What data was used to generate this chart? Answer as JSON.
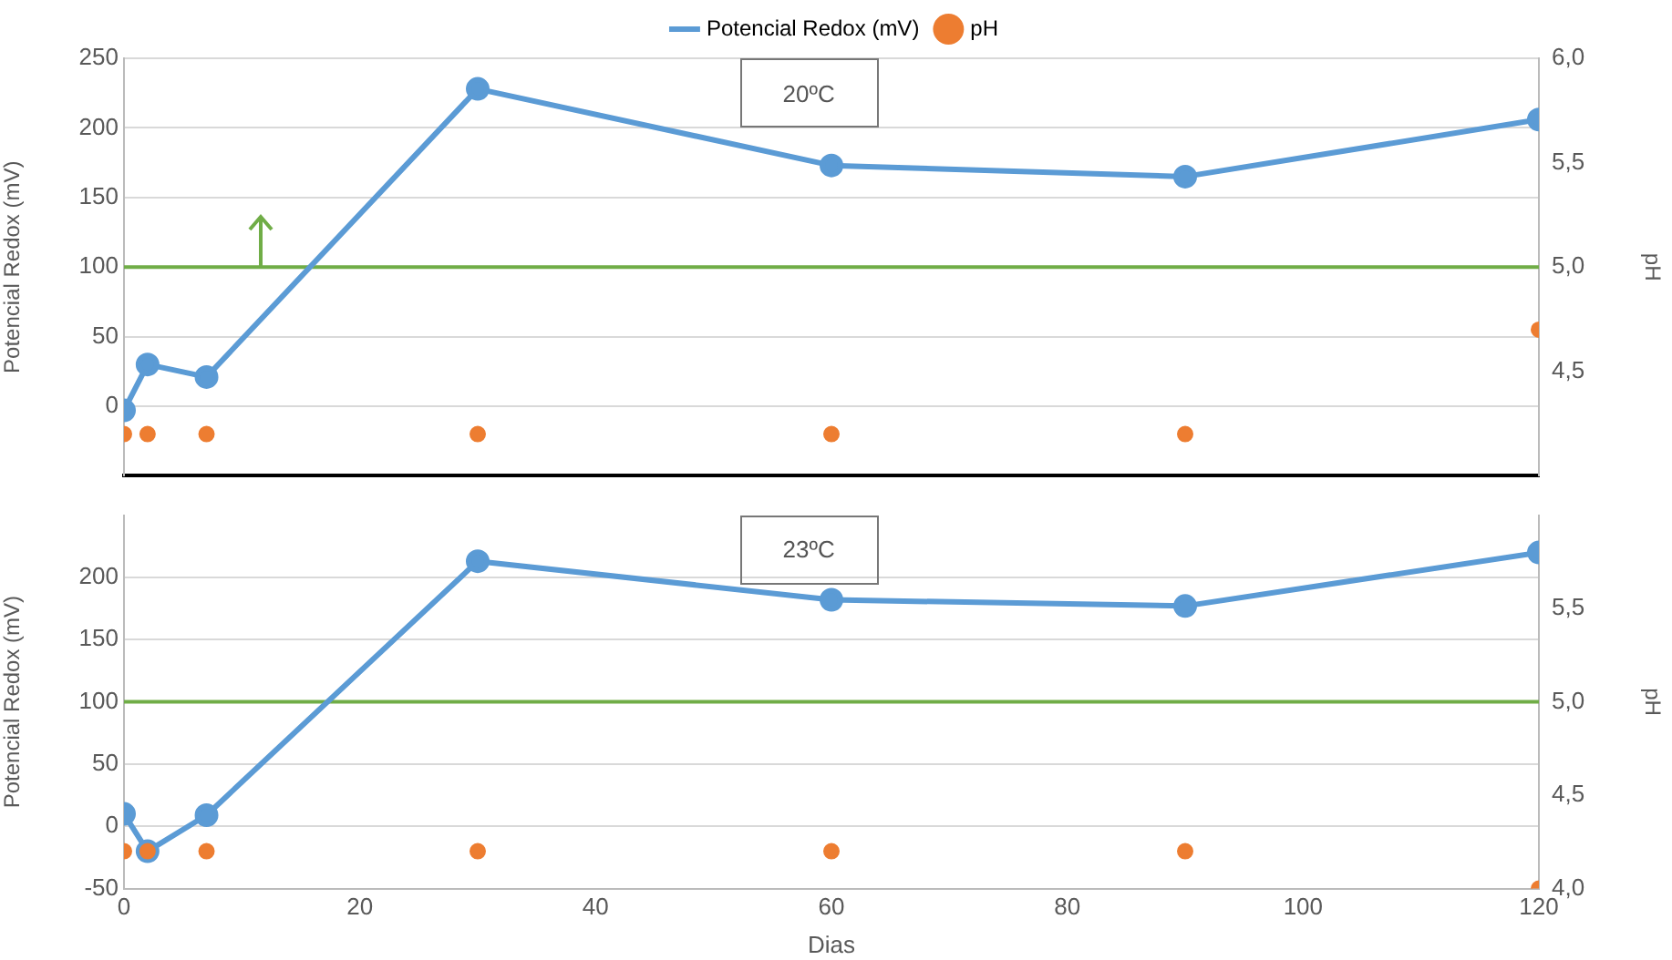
{
  "chart_data": [
    {
      "type": "line",
      "xlim": [
        0,
        120
      ],
      "xticks": [
        0,
        20,
        40,
        60,
        80,
        100,
        120
      ],
      "ylim": [
        -50,
        250
      ],
      "yticks": [
        0,
        50,
        100,
        150,
        200,
        250
      ],
      "y2lim": [
        4,
        6
      ],
      "y2ticks": [
        {
          "value": 4.5,
          "label": "4,5"
        },
        {
          "value": 5,
          "label": "5,0"
        },
        {
          "value": 5.5,
          "label": "5,5"
        },
        {
          "value": 6,
          "label": "6,0"
        }
      ],
      "ylabel": "Potencial Redox (mV)",
      "y2label": "pH",
      "tick_labels": "y",
      "grid": "y",
      "legend": "top",
      "marker": "circle",
      "annotations": [
        "20ºC"
      ],
      "ref_lines": [
        {
          "axis": "y",
          "value": 100,
          "color": "#70ad47"
        }
      ],
      "x": [
        0,
        2,
        7,
        30,
        60,
        90,
        120
      ],
      "series": [
        {
          "name": "Potencial Redox (mV)",
          "color": "#5b9bd5",
          "values": [
            -3,
            30,
            21,
            228,
            173,
            165,
            206
          ]
        },
        {
          "name": "pH",
          "type": "scatter",
          "axis": "y2",
          "color": "#ed7d31",
          "values": [
            4.2,
            4.2,
            4.2,
            4.2,
            4.2,
            4.2,
            4.7
          ]
        }
      ]
    },
    {
      "type": "line",
      "xlim": [
        0,
        120
      ],
      "xticks": [
        0,
        20,
        40,
        60,
        80,
        100,
        120
      ],
      "ylim": [
        -50,
        250
      ],
      "yticks": [
        -50,
        0,
        50,
        100,
        150,
        200
      ],
      "y2lim": [
        4,
        6
      ],
      "y2ticks": [
        {
          "value": 4,
          "label": "4,0"
        },
        {
          "value": 4.5,
          "label": "4,5"
        },
        {
          "value": 5,
          "label": "5,0"
        },
        {
          "value": 5.5,
          "label": "5,5"
        }
      ],
      "xlabel": "Dias",
      "ylabel": "Potencial Redox (mV)",
      "y2label": "pH",
      "grid": "y",
      "marker": "circle",
      "annotations": [
        "23ºC"
      ],
      "ref_lines": [
        {
          "axis": "y",
          "value": 100,
          "color": "#70ad47"
        }
      ],
      "x": [
        0,
        2,
        7,
        30,
        60,
        90,
        120
      ],
      "series": [
        {
          "color": "#5b9bd5",
          "values": [
            10,
            -20,
            9,
            213,
            182,
            177,
            220
          ]
        },
        {
          "type": "scatter",
          "axis": "y2",
          "color": "#ed7d31",
          "values": [
            4.2,
            4.2,
            4.2,
            4.2,
            4.2,
            4.2,
            4.0
          ]
        }
      ]
    }
  ]
}
